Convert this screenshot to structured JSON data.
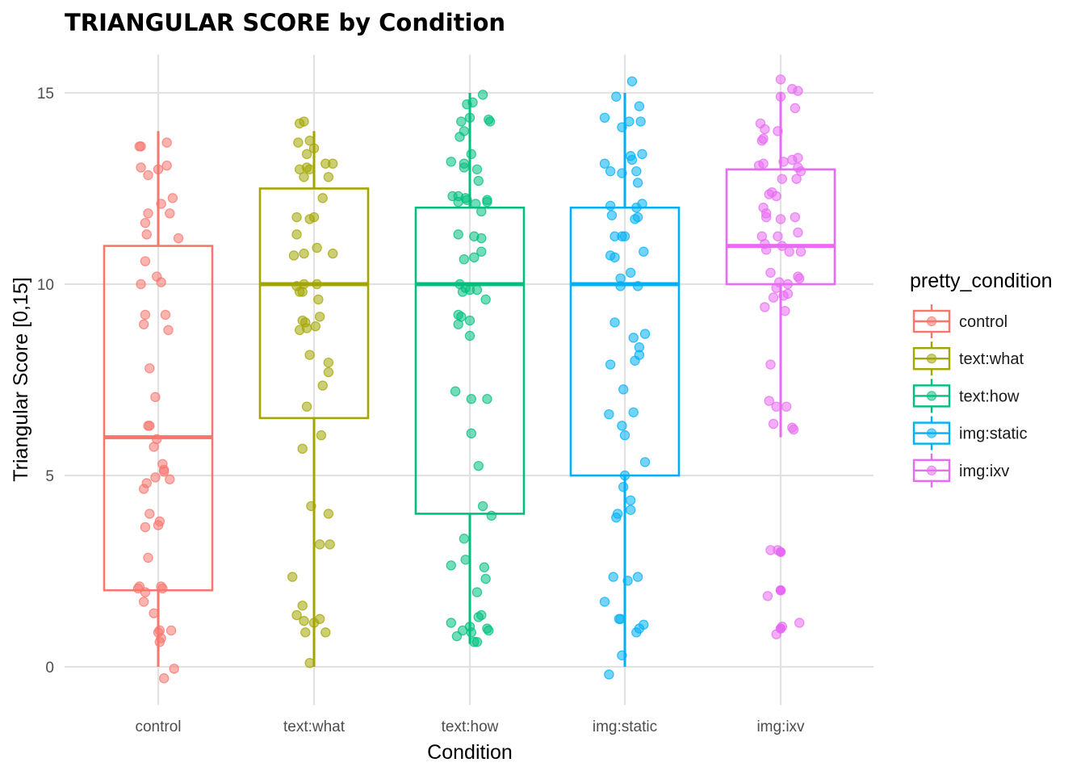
{
  "chart_data": {
    "type": "box",
    "title": "TRIANGULAR SCORE by Condition",
    "xlabel": "Condition",
    "ylabel": "Triangular Score [0,15]",
    "ylim": [
      -1,
      16
    ],
    "yticks": [
      0,
      5,
      10,
      15
    ],
    "grid": true,
    "legend": {
      "title": "pretty_condition",
      "position": "right"
    },
    "categories": [
      "control",
      "text:what",
      "text:how",
      "img:static",
      "img:ixv"
    ],
    "series": [
      {
        "name": "control",
        "color": "#F8766D",
        "box": {
          "lower_whisker": 0,
          "q1": 2,
          "median": 6,
          "q3": 11,
          "upper_whisker": 14
        },
        "outliers": [],
        "points": [
          [
            -0.12,
            13.6
          ],
          [
            -0.13,
            13.6
          ],
          [
            0.06,
            13.7
          ],
          [
            -0.12,
            13.05
          ],
          [
            -0.07,
            12.85
          ],
          [
            0.0,
            13.0
          ],
          [
            0.06,
            13.1
          ],
          [
            0.1,
            12.25
          ],
          [
            0.02,
            12.1
          ],
          [
            -0.07,
            11.85
          ],
          [
            -0.09,
            11.6
          ],
          [
            0.08,
            11.85
          ],
          [
            0.14,
            11.2
          ],
          [
            -0.08,
            11.3
          ],
          [
            -0.09,
            10.6
          ],
          [
            -0.01,
            10.2
          ],
          [
            0.02,
            10.05
          ],
          [
            -0.12,
            10.0
          ],
          [
            -0.09,
            9.2
          ],
          [
            0.05,
            9.2
          ],
          [
            -0.1,
            8.95
          ],
          [
            0.07,
            8.8
          ],
          [
            -0.06,
            7.8
          ],
          [
            -0.02,
            7.05
          ],
          [
            -0.07,
            6.3
          ],
          [
            -0.06,
            6.3
          ],
          [
            -0.03,
            5.75
          ],
          [
            -0.01,
            5.95
          ],
          [
            0.03,
            5.3
          ],
          [
            0.04,
            5.1
          ],
          [
            0.04,
            5.15
          ],
          [
            -0.02,
            4.95
          ],
          [
            0.08,
            4.9
          ],
          [
            -0.08,
            4.8
          ],
          [
            -0.1,
            4.65
          ],
          [
            -0.06,
            4.0
          ],
          [
            0.01,
            3.8
          ],
          [
            0.0,
            3.7
          ],
          [
            -0.09,
            3.65
          ],
          [
            -0.07,
            2.85
          ],
          [
            -0.14,
            2.05
          ],
          [
            -0.13,
            2.1
          ],
          [
            0.02,
            2.1
          ],
          [
            0.03,
            2.05
          ],
          [
            -0.09,
            1.95
          ],
          [
            -0.1,
            1.7
          ],
          [
            -0.03,
            1.4
          ],
          [
            0.01,
            0.95
          ],
          [
            0.0,
            0.9
          ],
          [
            0.09,
            0.95
          ],
          [
            0.02,
            0.75
          ],
          [
            0.01,
            0.65
          ],
          [
            0.04,
            -0.3
          ],
          [
            0.11,
            -0.05
          ]
        ]
      },
      {
        "name": "text:what",
        "color": "#A3A500",
        "box": {
          "lower_whisker": 0,
          "q1": 6.5,
          "median": 10,
          "q3": 12.5,
          "upper_whisker": 14
        },
        "outliers": [],
        "points": [
          [
            -0.1,
            14.2
          ],
          [
            -0.07,
            14.25
          ],
          [
            -0.11,
            13.7
          ],
          [
            -0.03,
            13.75
          ],
          [
            -0.05,
            13.4
          ],
          [
            0.0,
            13.55
          ],
          [
            -0.1,
            13.0
          ],
          [
            -0.05,
            13.05
          ],
          [
            -0.03,
            13.0
          ],
          [
            0.08,
            13.15
          ],
          [
            0.13,
            13.15
          ],
          [
            -0.07,
            12.8
          ],
          [
            0.1,
            12.8
          ],
          [
            0.06,
            12.25
          ],
          [
            -0.12,
            11.75
          ],
          [
            -0.03,
            11.7
          ],
          [
            0.0,
            11.75
          ],
          [
            -0.12,
            11.3
          ],
          [
            0.02,
            10.95
          ],
          [
            -0.14,
            10.75
          ],
          [
            -0.07,
            10.8
          ],
          [
            0.13,
            10.8
          ],
          [
            -0.07,
            10.0
          ],
          [
            -0.12,
            9.95
          ],
          [
            0.02,
            10.0
          ],
          [
            -0.08,
            9.8
          ],
          [
            -0.1,
            9.8
          ],
          [
            0.03,
            9.6
          ],
          [
            0.04,
            9.15
          ],
          [
            -0.06,
            9.0
          ],
          [
            -0.08,
            9.05
          ],
          [
            0.01,
            8.9
          ],
          [
            -0.1,
            8.8
          ],
          [
            -0.05,
            8.85
          ],
          [
            0.1,
            7.95
          ],
          [
            0.1,
            7.7
          ],
          [
            -0.03,
            8.15
          ],
          [
            0.06,
            7.35
          ],
          [
            -0.05,
            6.8
          ],
          [
            0.05,
            6.05
          ],
          [
            -0.08,
            5.7
          ],
          [
            -0.02,
            4.2
          ],
          [
            0.1,
            4.0
          ],
          [
            0.04,
            3.2
          ],
          [
            0.11,
            3.2
          ],
          [
            -0.15,
            2.35
          ],
          [
            -0.08,
            1.6
          ],
          [
            -0.12,
            1.35
          ],
          [
            -0.07,
            1.2
          ],
          [
            0.04,
            1.25
          ],
          [
            0.0,
            1.15
          ],
          [
            -0.06,
            0.9
          ],
          [
            0.08,
            0.9
          ],
          [
            -0.03,
            0.1
          ]
        ]
      },
      {
        "name": "text:how",
        "color": "#00BF7D",
        "box": {
          "lower_whisker": 0.6,
          "q1": 4,
          "median": 10,
          "q3": 12,
          "upper_whisker": 15
        },
        "outliers": [],
        "points": [
          [
            0.09,
            14.95
          ],
          [
            -0.02,
            14.7
          ],
          [
            0.02,
            14.75
          ],
          [
            0.13,
            14.3
          ],
          [
            0.14,
            14.25
          ],
          [
            -0.06,
            14.25
          ],
          [
            0.0,
            14.35
          ],
          [
            -0.07,
            13.85
          ],
          [
            -0.04,
            14.0
          ],
          [
            0.01,
            13.4
          ],
          [
            -0.13,
            13.2
          ],
          [
            -0.04,
            13.15
          ],
          [
            -0.04,
            13.05
          ],
          [
            0.05,
            13.0
          ],
          [
            0.06,
            12.7
          ],
          [
            -0.12,
            12.3
          ],
          [
            -0.08,
            12.3
          ],
          [
            -0.03,
            12.25
          ],
          [
            0.12,
            12.2
          ],
          [
            0.12,
            12.15
          ],
          [
            -0.08,
            12.15
          ],
          [
            0.04,
            12.1
          ],
          [
            -0.02,
            12.2
          ],
          [
            0.08,
            11.9
          ],
          [
            -0.08,
            11.3
          ],
          [
            0.03,
            11.25
          ],
          [
            0.08,
            11.2
          ],
          [
            0.08,
            10.85
          ],
          [
            -0.04,
            10.65
          ],
          [
            0.03,
            10.7
          ],
          [
            -0.07,
            10.0
          ],
          [
            -0.03,
            9.9
          ],
          [
            -0.05,
            9.8
          ],
          [
            0.0,
            9.85
          ],
          [
            0.05,
            9.85
          ],
          [
            0.11,
            9.6
          ],
          [
            -0.08,
            9.2
          ],
          [
            -0.06,
            9.15
          ],
          [
            -0.08,
            8.95
          ],
          [
            0.0,
            9.05
          ],
          [
            0.0,
            8.65
          ],
          [
            -0.1,
            7.2
          ],
          [
            0.01,
            7.0
          ],
          [
            0.12,
            7.0
          ],
          [
            0.01,
            6.1
          ],
          [
            0.06,
            5.25
          ],
          [
            0.09,
            4.2
          ],
          [
            0.15,
            3.95
          ],
          [
            -0.04,
            3.35
          ],
          [
            -0.03,
            2.8
          ],
          [
            0.1,
            2.6
          ],
          [
            -0.13,
            2.65
          ],
          [
            0.11,
            2.3
          ],
          [
            0.05,
            1.95
          ],
          [
            0.08,
            1.35
          ],
          [
            0.06,
            1.3
          ],
          [
            -0.13,
            1.15
          ],
          [
            0.0,
            1.05
          ],
          [
            -0.05,
            0.95
          ],
          [
            0.01,
            0.9
          ],
          [
            0.12,
            1.0
          ],
          [
            0.13,
            0.95
          ],
          [
            -0.09,
            0.8
          ],
          [
            0.03,
            0.65
          ],
          [
            0.05,
            0.65
          ]
        ]
      },
      {
        "name": "img:static",
        "color": "#00B0F6",
        "box": {
          "lower_whisker": 0,
          "q1": 5,
          "median": 10,
          "q3": 12,
          "upper_whisker": 15
        },
        "outliers": [],
        "points": [
          [
            0.05,
            15.3
          ],
          [
            -0.06,
            14.9
          ],
          [
            0.1,
            14.65
          ],
          [
            -0.14,
            14.35
          ],
          [
            -0.02,
            14.1
          ],
          [
            0.03,
            14.25
          ],
          [
            0.11,
            14.25
          ],
          [
            0.12,
            13.4
          ],
          [
            0.04,
            13.35
          ],
          [
            0.05,
            13.25
          ],
          [
            -0.14,
            13.15
          ],
          [
            -0.1,
            12.95
          ],
          [
            0.08,
            12.95
          ],
          [
            -0.02,
            12.9
          ],
          [
            0.09,
            12.65
          ],
          [
            -0.1,
            12.05
          ],
          [
            0.12,
            12.1
          ],
          [
            0.08,
            12.0
          ],
          [
            -0.09,
            11.8
          ],
          [
            0.07,
            11.7
          ],
          [
            0.09,
            11.75
          ],
          [
            -0.07,
            11.25
          ],
          [
            -0.02,
            11.25
          ],
          [
            0.0,
            11.25
          ],
          [
            0.13,
            10.85
          ],
          [
            -0.1,
            10.75
          ],
          [
            -0.07,
            10.7
          ],
          [
            0.04,
            10.3
          ],
          [
            -0.03,
            10.15
          ],
          [
            -0.03,
            9.95
          ],
          [
            0.09,
            9.95
          ],
          [
            -0.07,
            9.0
          ],
          [
            0.14,
            8.7
          ],
          [
            0.06,
            8.6
          ],
          [
            0.1,
            8.35
          ],
          [
            0.1,
            8.15
          ],
          [
            0.07,
            8.0
          ],
          [
            -0.1,
            7.9
          ],
          [
            -0.01,
            7.25
          ],
          [
            -0.11,
            6.6
          ],
          [
            0.06,
            6.65
          ],
          [
            -0.02,
            6.3
          ],
          [
            0.0,
            6.05
          ],
          [
            0.14,
            5.35
          ],
          [
            0.0,
            5.0
          ],
          [
            -0.01,
            4.7
          ],
          [
            0.04,
            4.35
          ],
          [
            0.04,
            4.1
          ],
          [
            -0.05,
            4.0
          ],
          [
            -0.06,
            3.9
          ],
          [
            -0.08,
            2.35
          ],
          [
            0.02,
            2.25
          ],
          [
            0.09,
            2.35
          ],
          [
            -0.14,
            1.7
          ],
          [
            -0.04,
            1.25
          ],
          [
            -0.03,
            1.25
          ],
          [
            0.13,
            1.1
          ],
          [
            0.1,
            1.0
          ],
          [
            0.08,
            0.9
          ],
          [
            -0.02,
            0.3
          ],
          [
            -0.11,
            -0.2
          ]
        ]
      },
      {
        "name": "img:ixv",
        "color": "#E76BF3",
        "box": {
          "lower_whisker": 6,
          "q1": 10,
          "median": 11,
          "q3": 13,
          "upper_whisker": 15
        },
        "outliers": [
          3,
          2,
          1
        ],
        "points": [
          [
            0.0,
            15.35
          ],
          [
            0.08,
            15.1
          ],
          [
            0.12,
            15.05
          ],
          [
            0.0,
            14.9
          ],
          [
            0.1,
            14.6
          ],
          [
            -0.14,
            14.2
          ],
          [
            -0.11,
            14.05
          ],
          [
            -0.02,
            14.0
          ],
          [
            -0.13,
            13.75
          ],
          [
            -0.12,
            13.8
          ],
          [
            0.02,
            13.2
          ],
          [
            0.08,
            13.25
          ],
          [
            0.12,
            13.3
          ],
          [
            -0.15,
            13.1
          ],
          [
            -0.12,
            13.15
          ],
          [
            0.12,
            13.05
          ],
          [
            0.14,
            12.95
          ],
          [
            0.01,
            12.75
          ],
          [
            0.11,
            12.75
          ],
          [
            -0.06,
            12.4
          ],
          [
            -0.08,
            12.35
          ],
          [
            -0.03,
            12.3
          ],
          [
            -0.12,
            12.0
          ],
          [
            -0.1,
            11.85
          ],
          [
            -0.1,
            11.75
          ],
          [
            0.0,
            11.7
          ],
          [
            0.1,
            11.75
          ],
          [
            0.12,
            11.35
          ],
          [
            -0.02,
            11.25
          ],
          [
            -0.13,
            11.25
          ],
          [
            -0.11,
            11.05
          ],
          [
            0.01,
            11.0
          ],
          [
            -0.1,
            10.9
          ],
          [
            0.06,
            10.85
          ],
          [
            0.14,
            10.85
          ],
          [
            -0.07,
            10.3
          ],
          [
            -0.01,
            10.05
          ],
          [
            0.12,
            10.2
          ],
          [
            0.13,
            10.15
          ],
          [
            0.05,
            10.0
          ],
          [
            -0.03,
            9.9
          ],
          [
            0.02,
            9.7
          ],
          [
            0.05,
            9.75
          ],
          [
            -0.05,
            9.65
          ],
          [
            0.03,
            9.3
          ],
          [
            -0.11,
            9.4
          ],
          [
            -0.07,
            7.9
          ],
          [
            -0.08,
            6.95
          ],
          [
            -0.03,
            6.8
          ],
          [
            0.04,
            6.8
          ],
          [
            -0.05,
            6.35
          ],
          [
            0.08,
            6.25
          ],
          [
            0.09,
            6.2
          ],
          [
            -0.07,
            3.05
          ],
          [
            -0.02,
            3.05
          ],
          [
            0.0,
            3.0
          ],
          [
            0.0,
            2.0
          ],
          [
            -0.09,
            1.85
          ],
          [
            0.0,
            2.0
          ],
          [
            0.13,
            1.15
          ],
          [
            0.01,
            1.05
          ],
          [
            -0.03,
            0.85
          ],
          [
            0.0,
            1.0
          ]
        ]
      }
    ]
  }
}
